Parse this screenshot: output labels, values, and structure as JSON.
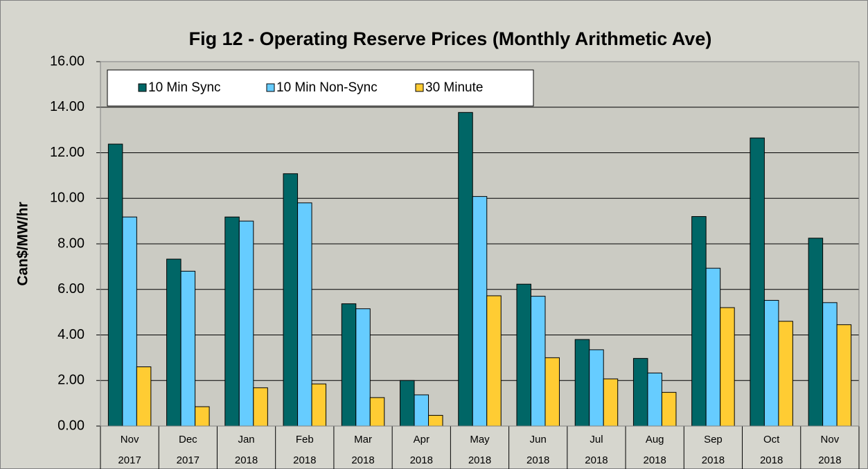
{
  "chart_data": {
    "type": "bar",
    "title": "Fig  12 - Operating Reserve Prices (Monthly Arithmetic Ave)",
    "y_label": "Can$/MW/hr",
    "categories": [
      [
        "Nov",
        "2017"
      ],
      [
        "Dec",
        "2017"
      ],
      [
        "Jan",
        "2018"
      ],
      [
        "Feb",
        "2018"
      ],
      [
        "Mar",
        "2018"
      ],
      [
        "Apr",
        "2018"
      ],
      [
        "May",
        "2018"
      ],
      [
        "Jun",
        "2018"
      ],
      [
        "Jul",
        "2018"
      ],
      [
        "Aug",
        "2018"
      ],
      [
        "Sep",
        "2018"
      ],
      [
        "Oct",
        "2018"
      ],
      [
        "Nov",
        "2018"
      ]
    ],
    "series": [
      {
        "name": "10 Min Sync",
        "color": "#006666",
        "values": [
          12.38,
          7.33,
          9.18,
          11.08,
          5.37,
          2.0,
          13.77,
          6.23,
          3.8,
          2.97,
          9.2,
          12.65,
          8.25
        ]
      },
      {
        "name": "10 Min Non-Sync",
        "color": "#66ccff",
        "values": [
          9.18,
          6.8,
          9.0,
          9.8,
          5.15,
          1.37,
          10.08,
          5.7,
          3.35,
          2.33,
          6.93,
          5.52,
          5.42
        ]
      },
      {
        "name": "30 Minute",
        "color": "#ffcc33",
        "values": [
          2.6,
          0.85,
          1.68,
          1.85,
          1.25,
          0.47,
          5.72,
          3.0,
          2.07,
          1.48,
          5.2,
          4.6,
          4.45
        ]
      }
    ],
    "ylim": [
      0,
      16
    ],
    "yticks": [
      {
        "value": 0,
        "label": "0.00"
      },
      {
        "value": 2,
        "label": "2.00"
      },
      {
        "value": 4,
        "label": "4.00"
      },
      {
        "value": 6,
        "label": "6.00"
      },
      {
        "value": 8,
        "label": "8.00"
      },
      {
        "value": 10,
        "label": "10.00"
      },
      {
        "value": 12,
        "label": "12.00"
      },
      {
        "value": 14,
        "label": "14.00"
      },
      {
        "value": 16,
        "label": "16.00"
      }
    ],
    "grid": true,
    "legend": "top-left"
  }
}
